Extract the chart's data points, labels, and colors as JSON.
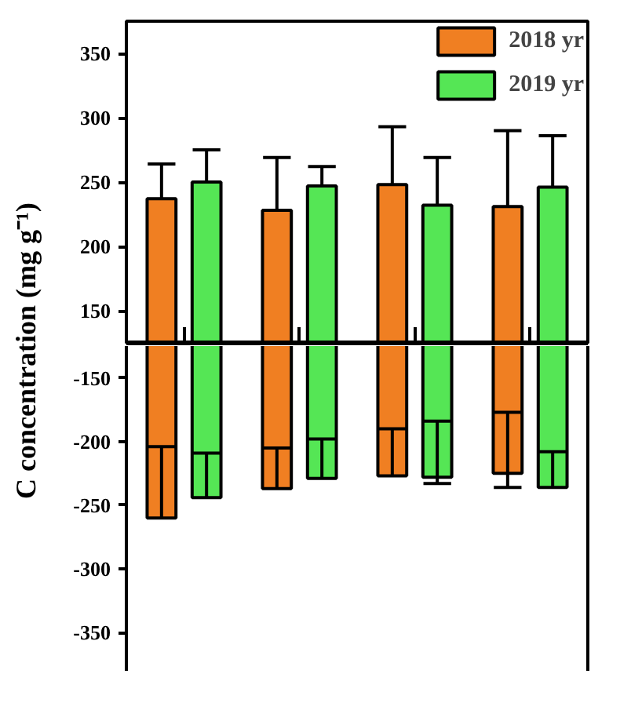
{
  "chart_data": [
    {
      "type": "bar",
      "ylabel": "C concentration (mg g⁻¹)",
      "categories": [
        null,
        null,
        null,
        null
      ],
      "ylim": [
        125,
        375
      ],
      "yticks": [
        150,
        200,
        250,
        300,
        350
      ],
      "tick_labels": "y",
      "grid": false,
      "legend": "top right",
      "series": [
        {
          "name": "2018 yr",
          "color": "#f07f22",
          "values": [
            237,
            228,
            248,
            231
          ],
          "errors": [
            [
              237,
              264
            ],
            [
              228,
              269
            ],
            [
              248,
              293
            ],
            [
              231,
              290
            ]
          ]
        },
        {
          "name": "2019 yr",
          "color": "#55e655",
          "values": [
            250,
            247,
            232,
            246
          ],
          "errors": [
            [
              250,
              275
            ],
            [
              247,
              262
            ],
            [
              232,
              269
            ],
            [
              246,
              286
            ]
          ]
        }
      ]
    },
    {
      "type": "bar",
      "categories": [
        null,
        null,
        null,
        null
      ],
      "ylim": [
        -380,
        -125
      ],
      "yticks": [
        -150,
        -200,
        -250,
        -300,
        -350
      ],
      "tick_labels": "y",
      "grid": false,
      "series": [
        {
          "color": "#f07f22",
          "values": [
            -260,
            -237,
            -227,
            -225
          ],
          "errors": [
            [
              -260,
              -204
            ],
            [
              -237,
              -205
            ],
            [
              -227,
              -190
            ],
            [
              -236,
              -177
            ]
          ]
        },
        {
          "color": "#55e655",
          "values": [
            -244,
            -229,
            -228,
            -236
          ],
          "errors": [
            [
              -244,
              -209
            ],
            [
              -229,
              -198
            ],
            [
              -233,
              -184
            ],
            [
              -236,
              -208
            ]
          ]
        }
      ]
    }
  ]
}
